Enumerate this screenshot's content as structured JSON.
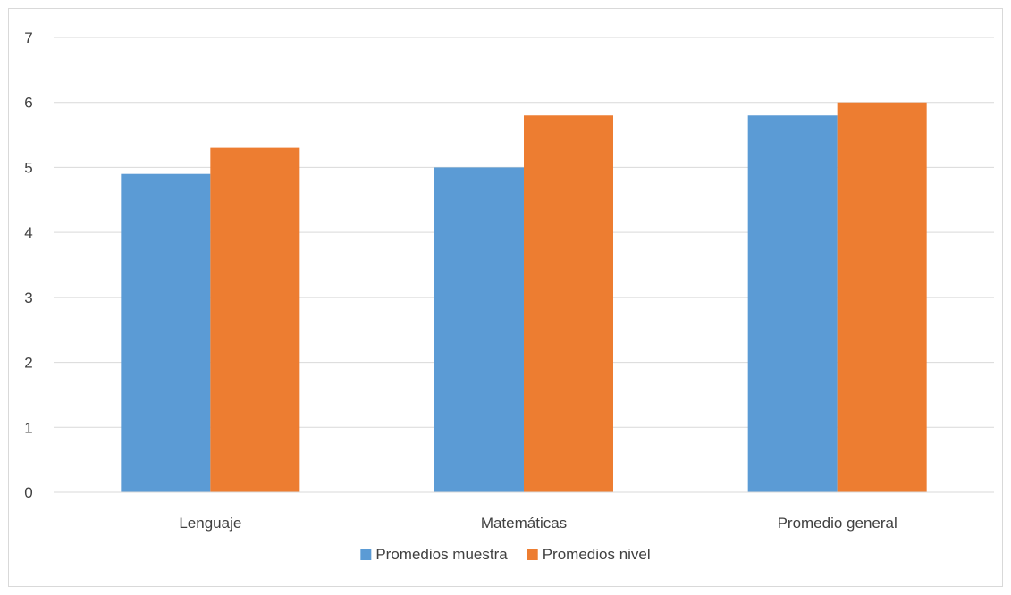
{
  "chart_data": {
    "type": "bar",
    "categories": [
      "Lenguaje",
      "Matemáticas",
      "Promedio general"
    ],
    "series": [
      {
        "name": "Promedios muestra",
        "values": [
          4.9,
          5.0,
          5.8
        ]
      },
      {
        "name": "Promedios nivel",
        "values": [
          5.3,
          5.8,
          6.0
        ]
      }
    ],
    "title": "",
    "xlabel": "",
    "ylabel": "",
    "ylim": [
      0,
      7
    ],
    "yticks": [
      "0",
      "1",
      "2",
      "3",
      "4",
      "5",
      "6",
      "7"
    ],
    "grid": true,
    "legend_position": "bottom",
    "colors": [
      "#5b9bd5",
      "#ed7d31"
    ],
    "gridline_color": "#d9d9d9",
    "axis_color": "#d9d9d9"
  }
}
